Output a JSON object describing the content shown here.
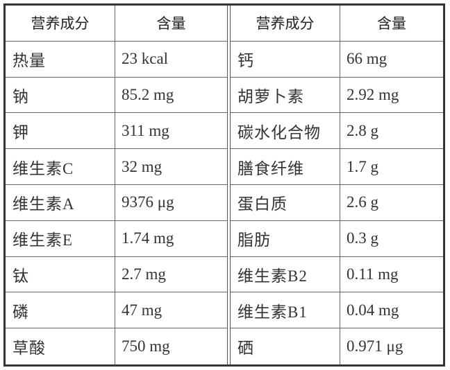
{
  "headers": [
    "营养成分",
    "含量",
    "营养成分",
    "含量"
  ],
  "left_rows": [
    {
      "name": "热量",
      "value": "23 kcal"
    },
    {
      "name": "钠",
      "value": "85.2 mg"
    },
    {
      "name": "钾",
      "value": "311 mg"
    },
    {
      "name": "维生素C",
      "value": "32 mg"
    },
    {
      "name": "维生素A",
      "value": "9376 μg"
    },
    {
      "name": "维生素E",
      "value": "1.74 mg"
    },
    {
      "name": "钛",
      "value": "2.7 mg"
    },
    {
      "name": "磷",
      "value": "47 mg"
    },
    {
      "name": "草酸",
      "value": "750 mg"
    }
  ],
  "right_rows": [
    {
      "name": "钙",
      "value": "66 mg"
    },
    {
      "name": "胡萝卜素",
      "value": "2.92 mg"
    },
    {
      "name": "碳水化合物",
      "value": "2.8 g"
    },
    {
      "name": "膳食纤维",
      "value": "1.7 g"
    },
    {
      "name": "蛋白质",
      "value": "2.6 g"
    },
    {
      "name": "脂肪",
      "value": "0.3 g"
    },
    {
      "name": "维生素B2",
      "value": "0.11 mg"
    },
    {
      "name": "维生素B1",
      "value": "0.04 mg"
    },
    {
      "name": "硒",
      "value": "0.971 μg"
    }
  ]
}
